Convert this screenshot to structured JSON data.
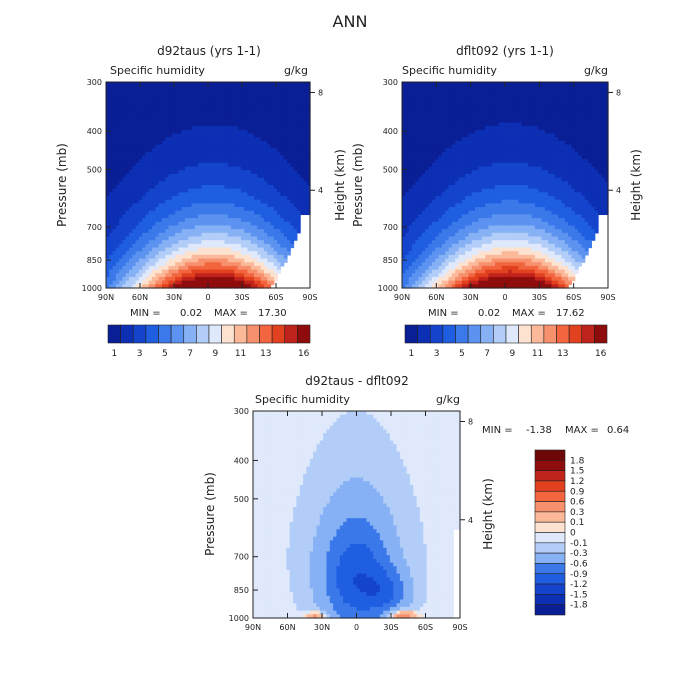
{
  "page_title": "ANN",
  "chart_data": [
    {
      "type": "heatmap",
      "subtype": "filled-contour",
      "title": "d92taus (yrs 1-1)",
      "variable": "Specific humidity",
      "units": "g/kg",
      "ylabel": "Pressure (mb)",
      "ylabel_right": "Height (km)",
      "x_ticks": [
        "90N",
        "60N",
        "30N",
        "0",
        "30S",
        "60S",
        "90S"
      ],
      "y_ticks": [
        300,
        400,
        500,
        700,
        850,
        1000
      ],
      "y_right_ticks": [
        4,
        8
      ],
      "stats": {
        "min_label": "MIN =",
        "min": "0.02",
        "max_label": "MAX =",
        "max": "17.30"
      },
      "levels": [
        1,
        2,
        3,
        4,
        5,
        6,
        7,
        8,
        9,
        10,
        11,
        12,
        13,
        14,
        15,
        16
      ],
      "level_labels": [
        "1",
        "3",
        "5",
        "7",
        "9",
        "11",
        "13",
        "16"
      ],
      "colors": [
        "#0a1e96",
        "#0d2fb4",
        "#1444cc",
        "#1f5ee0",
        "#3b78ea",
        "#5c92f0",
        "#86b1f5",
        "#b2cdf8",
        "#dfe9fb",
        "#fde2d0",
        "#fbb99a",
        "#f7906d",
        "#f2653e",
        "#e2411f",
        "#c0231b",
        "#8e0c0c"
      ],
      "field": {
        "max": 17.3,
        "center_lat": -5,
        "surface_peak": 17.3,
        "surface_width_deg": 56,
        "scale_height_decay": 0.18
      }
    },
    {
      "type": "heatmap",
      "subtype": "filled-contour",
      "title": "dflt092 (yrs 1-1)",
      "variable": "Specific humidity",
      "units": "g/kg",
      "ylabel": "Pressure (mb)",
      "ylabel_right": "Height (km)",
      "x_ticks": [
        "90N",
        "60N",
        "30N",
        "0",
        "30S",
        "60S",
        "90S"
      ],
      "y_ticks": [
        300,
        400,
        500,
        700,
        850,
        1000
      ],
      "y_right_ticks": [
        4,
        8
      ],
      "stats": {
        "min_label": "MIN =",
        "min": "0.02",
        "max_label": "MAX =",
        "max": "17.62"
      },
      "levels": [
        1,
        2,
        3,
        4,
        5,
        6,
        7,
        8,
        9,
        10,
        11,
        12,
        13,
        14,
        15,
        16
      ],
      "level_labels": [
        "1",
        "3",
        "5",
        "7",
        "9",
        "11",
        "13",
        "16"
      ],
      "colors": [
        "#0a1e96",
        "#0d2fb4",
        "#1444cc",
        "#1f5ee0",
        "#3b78ea",
        "#5c92f0",
        "#86b1f5",
        "#b2cdf8",
        "#dfe9fb",
        "#fde2d0",
        "#fbb99a",
        "#f7906d",
        "#f2653e",
        "#e2411f",
        "#c0231b",
        "#8e0c0c"
      ],
      "field": {
        "max": 17.62,
        "center_lat": -5,
        "surface_peak": 17.62,
        "surface_width_deg": 56,
        "scale_height_decay": 0.18
      }
    },
    {
      "type": "heatmap",
      "subtype": "filled-contour",
      "title": "d92taus - dflt092",
      "variable": "Specific humidity",
      "units": "g/kg",
      "ylabel": "Pressure (mb)",
      "ylabel_right": "Height (km)",
      "x_ticks": [
        "90N",
        "60N",
        "30N",
        "0",
        "30S",
        "60S",
        "90S"
      ],
      "y_ticks": [
        300,
        400,
        500,
        700,
        850,
        1000
      ],
      "y_right_ticks": [
        4,
        8
      ],
      "stats": {
        "min_label": "MIN =",
        "min": "-1.38",
        "max_label": "MAX =",
        "max": "0.64"
      },
      "levels": [
        -1.8,
        -1.5,
        -1.2,
        -0.9,
        -0.6,
        -0.3,
        -0.1,
        0,
        0.1,
        0.3,
        0.6,
        0.9,
        1.2,
        1.5,
        1.8
      ],
      "level_labels": [
        "-1.8",
        "-1.5",
        "-1.2",
        "-0.9",
        "-0.6",
        "-0.3",
        "-0.1",
        "0",
        "0.1",
        "0.3",
        "0.6",
        "0.9",
        "1.2",
        "1.5",
        "1.8"
      ],
      "colors": [
        "#0a1e96",
        "#0d2fb4",
        "#1444cc",
        "#1f5ee0",
        "#3b78ea",
        "#86b1f5",
        "#b2cdf8",
        "#dfe9fb",
        "#fde2d0",
        "#fbb99a",
        "#f7906d",
        "#f2653e",
        "#e2411f",
        "#c0231b",
        "#8e0c0c",
        "#6e0808"
      ],
      "field": {
        "min": -1.38,
        "max": 0.64
      }
    }
  ]
}
